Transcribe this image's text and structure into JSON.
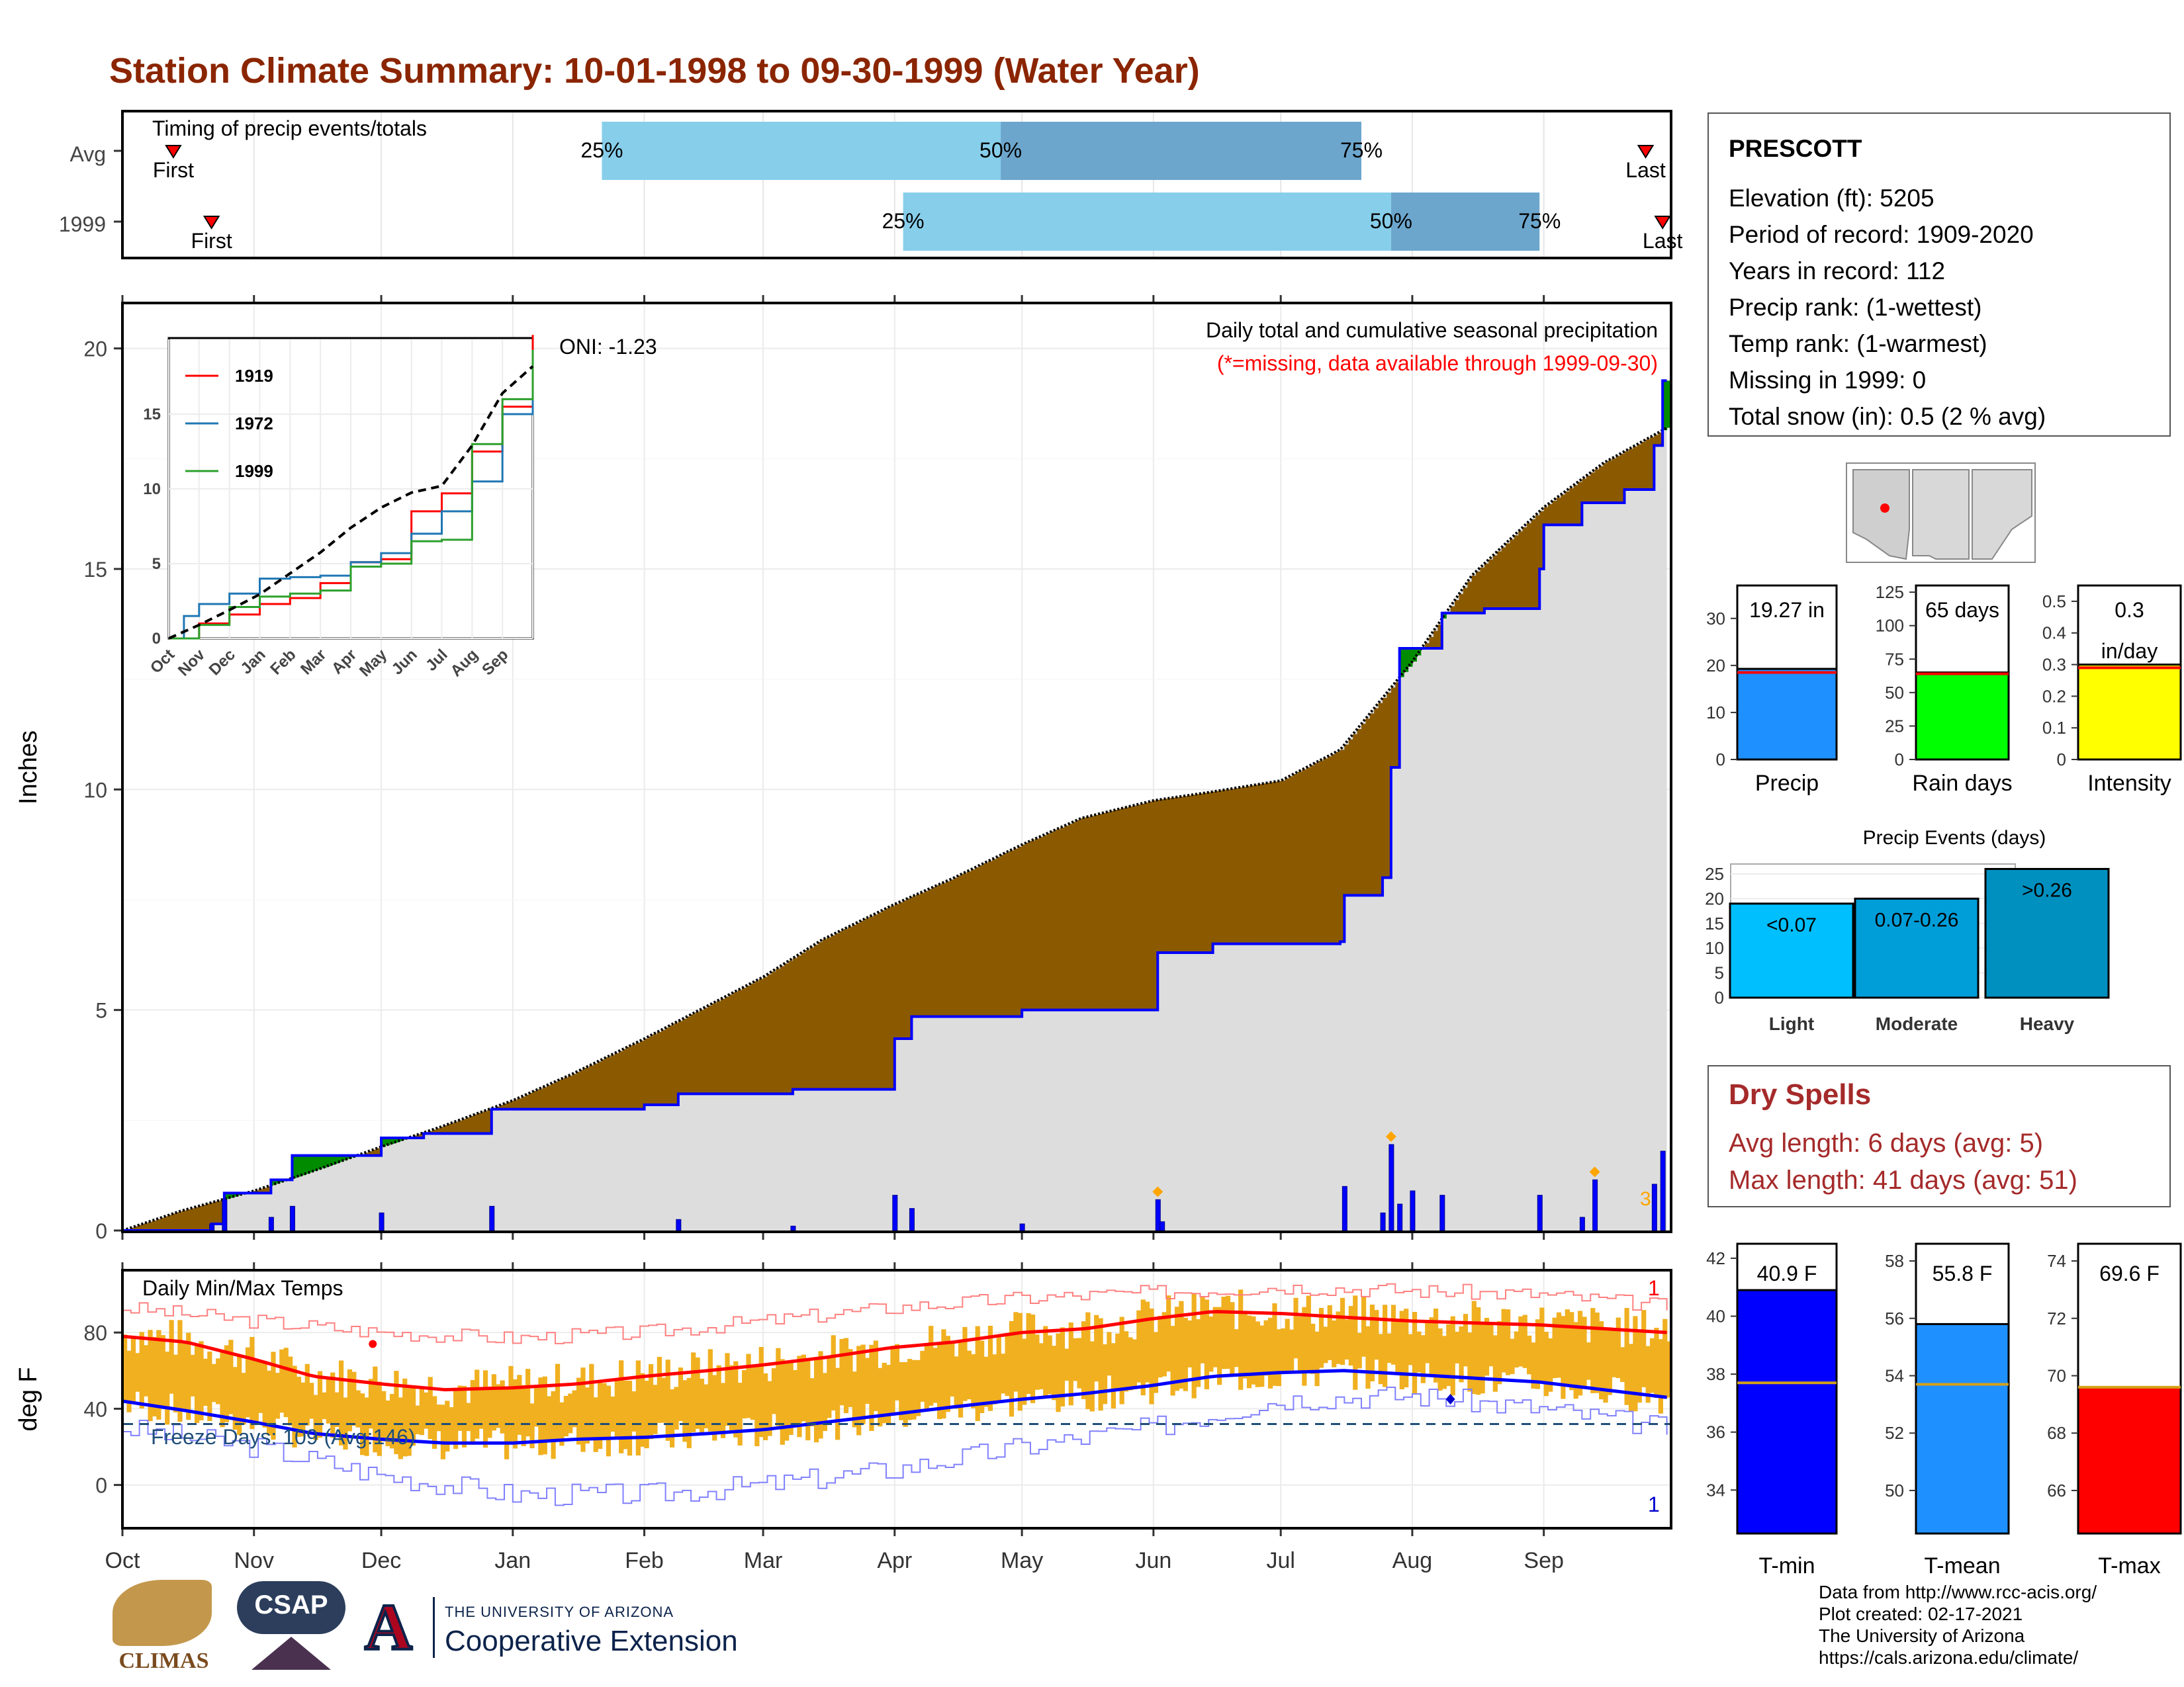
{
  "title": "Station Climate Summary: 10-01-1998 to 09-30-1999 (Water Year)",
  "colors": {
    "title": "#8b2500",
    "light_blue": "#87ceeb",
    "mid_blue": "#6ca6cd",
    "brown_fill": "#8b5a00",
    "green_fill": "#008b00",
    "grey_fill": "#dddddd",
    "blue_line": "#0000ff",
    "tmax_line": "#ff0000",
    "tmin_line": "#0000ff",
    "temp_bar": "#f0b020",
    "freeze_line": "#1f4e79",
    "marker_red": "#ff0000",
    "marker_orange": "#ffa500"
  },
  "timing_panel": {
    "header": "Timing of precip events/totals",
    "rows": [
      {
        "label": "Avg",
        "first": "First",
        "last": "Last",
        "p25": "25%",
        "p50": "50%",
        "p75": "75%"
      },
      {
        "label": "1999",
        "first": "First",
        "last": "Last",
        "p25": "25%",
        "p50": "50%",
        "p75": "75%"
      }
    ]
  },
  "precip_panel": {
    "ylabel": "Inches",
    "title_line1": "Daily total and cumulative seasonal precipitation",
    "title_line2": "(*=missing, data available through 1999-09-30)",
    "oni": "ONI: -1.23",
    "y_ticks": [
      "0",
      "5",
      "10",
      "15",
      "20"
    ],
    "mark_label": "3"
  },
  "inset": {
    "legend": [
      "1919",
      "1972",
      "1999"
    ],
    "y_ticks": [
      "0",
      "5",
      "10",
      "15"
    ],
    "x_ticks": [
      "Oct",
      "Nov",
      "Dec",
      "Jan",
      "Feb",
      "Mar",
      "Apr",
      "May",
      "Jun",
      "Jul",
      "Aug",
      "Sep"
    ]
  },
  "temp_panel": {
    "ylabel": "deg F",
    "header": "Daily Min/Max Temps",
    "freeze": "Freeze Days: 109 (Avg:146)",
    "y_ticks": [
      "0",
      "40",
      "80"
    ],
    "record_hi_count": "1",
    "record_lo_count": "1"
  },
  "months": [
    "Oct",
    "Nov",
    "Dec",
    "Jan",
    "Feb",
    "Mar",
    "Apr",
    "May",
    "Jun",
    "Jul",
    "Aug",
    "Sep"
  ],
  "station": {
    "name": "PRESCOTT",
    "lines": [
      "Elevation (ft): 5205",
      "Period of record: 1909-2020",
      "Years in record: 112",
      "Precip rank:  (1-wettest)",
      "Temp rank:  (1-warmest)",
      "Missing in 1999: 0",
      "Total snow (in): 0.5 (2 % avg)"
    ]
  },
  "dry_spells": {
    "title": "Dry Spells",
    "avg": "Avg length: 6 days (avg: 5)",
    "max": "Max length: 41 days (avg: 51)"
  },
  "footer": {
    "line1": "Data from http://www.rcc-acis.org/",
    "line2": "Plot created: 02-17-2021",
    "line3": "The University of Arizona",
    "line4": "https://cals.arizona.edu/climate/"
  },
  "logos": {
    "climas": "CLIMAS",
    "csap": "CSAP",
    "ua_small": "THE UNIVERSITY OF ARIZONA",
    "ua_big": "Cooperative Extension"
  },
  "chart_data": [
    {
      "type": "bar",
      "name": "timing",
      "categories": [
        "Avg",
        "1999"
      ],
      "series": [
        {
          "row": "Avg",
          "first": "1998-10-13",
          "p25": "1999-01-22",
          "p50": "1999-04-26",
          "p75": "1999-07-20",
          "last": "1999-09-25"
        },
        {
          "row": "1999",
          "first": "1998-10-22",
          "p25": "1999-04-03",
          "p50": "1999-07-27",
          "p75": "1999-08-31",
          "last": "1999-09-29"
        }
      ]
    },
    {
      "type": "area",
      "name": "cumulative_precip",
      "xlabel": "",
      "ylabel": "Inches",
      "ylim": [
        0,
        21
      ],
      "xlim": [
        "1998-10-01",
        "1999-09-30"
      ],
      "average_cumulative": [
        [
          "1998-10-01",
          0
        ],
        [
          "1998-10-15",
          0.45
        ],
        [
          "1998-11-01",
          0.9
        ],
        [
          "1998-11-15",
          1.35
        ],
        [
          "1998-12-01",
          1.9
        ],
        [
          "1998-12-15",
          2.35
        ],
        [
          "1999-01-01",
          2.95
        ],
        [
          "1999-01-15",
          3.55
        ],
        [
          "1999-02-01",
          4.35
        ],
        [
          "1999-02-15",
          5.05
        ],
        [
          "1999-03-01",
          5.75
        ],
        [
          "1999-03-15",
          6.6
        ],
        [
          "1999-04-01",
          7.4
        ],
        [
          "1999-04-15",
          8.0
        ],
        [
          "1999-05-01",
          8.75
        ],
        [
          "1999-05-15",
          9.35
        ],
        [
          "1999-06-01",
          9.75
        ],
        [
          "1999-06-15",
          9.95
        ],
        [
          "1999-07-01",
          10.2
        ],
        [
          "1999-07-15",
          10.9
        ],
        [
          "1999-08-01",
          12.9
        ],
        [
          "1999-08-15",
          14.85
        ],
        [
          "1999-09-01",
          16.4
        ],
        [
          "1999-09-15",
          17.4
        ],
        [
          "1999-09-30",
          18.2
        ]
      ],
      "observed_cumulative": [
        [
          "1998-10-01",
          0
        ],
        [
          "1998-10-20",
          0
        ],
        [
          "1998-10-22",
          0.15
        ],
        [
          "1998-10-25",
          0.85
        ],
        [
          "1998-11-05",
          1.15
        ],
        [
          "1998-11-10",
          1.7
        ],
        [
          "1998-11-28",
          1.7
        ],
        [
          "1998-12-01",
          2.1
        ],
        [
          "1998-12-08",
          2.1
        ],
        [
          "1998-12-11",
          2.2
        ],
        [
          "1998-12-25",
          2.2
        ],
        [
          "1998-12-27",
          2.75
        ],
        [
          "1999-01-18",
          2.75
        ],
        [
          "1999-02-01",
          2.85
        ],
        [
          "1999-02-09",
          3.1
        ],
        [
          "1999-03-08",
          3.2
        ],
        [
          "1999-03-31",
          3.2
        ],
        [
          "1999-04-01",
          4.35
        ],
        [
          "1999-04-05",
          4.85
        ],
        [
          "1999-05-01",
          5.0
        ],
        [
          "1999-05-24",
          5.0
        ],
        [
          "1999-06-02",
          5.6
        ],
        [
          "1999-06-02",
          6.3
        ],
        [
          "1999-06-15",
          6.5
        ],
        [
          "1999-07-15",
          6.55
        ],
        [
          "1999-07-16",
          7.6
        ],
        [
          "1999-07-25",
          8.0
        ],
        [
          "1999-07-27",
          10.5
        ],
        [
          "1999-07-29",
          13.2
        ],
        [
          "1999-08-05",
          13.2
        ],
        [
          "1999-08-08",
          14.0
        ],
        [
          "1999-08-18",
          14.1
        ],
        [
          "1999-08-31",
          15.0
        ],
        [
          "1999-09-01",
          16.0
        ],
        [
          "1999-09-10",
          16.5
        ],
        [
          "1999-09-20",
          16.8
        ],
        [
          "1999-09-27",
          17.8
        ],
        [
          "1999-09-29",
          19.27
        ],
        [
          "1999-09-30",
          19.27
        ]
      ],
      "daily_precip": [
        [
          "1998-10-22",
          0.15
        ],
        [
          "1998-10-25",
          0.7
        ],
        [
          "1998-11-05",
          0.3
        ],
        [
          "1998-11-10",
          0.55
        ],
        [
          "1998-12-01",
          0.4
        ],
        [
          "1998-12-27",
          0.55
        ],
        [
          "1999-02-09",
          0.25
        ],
        [
          "1999-03-08",
          0.1
        ],
        [
          "1999-04-01",
          0.8
        ],
        [
          "1999-04-05",
          0.5
        ],
        [
          "1999-05-01",
          0.15
        ],
        [
          "1999-06-02",
          0.7
        ],
        [
          "1999-06-03",
          0.2
        ],
        [
          "1999-07-16",
          1.0
        ],
        [
          "1999-07-25",
          0.4
        ],
        [
          "1999-07-27",
          1.95
        ],
        [
          "1999-07-29",
          0.6
        ],
        [
          "1999-08-01",
          0.9
        ],
        [
          "1999-08-08",
          0.8
        ],
        [
          "1999-08-31",
          0.8
        ],
        [
          "1999-09-10",
          0.3
        ],
        [
          "1999-09-13",
          1.15
        ],
        [
          "1999-09-27",
          1.05
        ],
        [
          "1999-09-29",
          1.8
        ]
      ]
    },
    {
      "type": "line",
      "name": "inset_cumulative",
      "xlim": [
        0,
        12
      ],
      "ylim": [
        0,
        20
      ],
      "series": [
        {
          "name": "1919",
          "color": "#ff0000",
          "points": [
            [
              0,
              0
            ],
            [
              1,
              1
            ],
            [
              2,
              1.6
            ],
            [
              3,
              2.3
            ],
            [
              4,
              2.7
            ],
            [
              5,
              3.7
            ],
            [
              6,
              5.1
            ],
            [
              7,
              5.3
            ],
            [
              8,
              8.5
            ],
            [
              9,
              9.7
            ],
            [
              10,
              12.5
            ],
            [
              11,
              15.5
            ],
            [
              12,
              20.3
            ]
          ]
        },
        {
          "name": "1972",
          "color": "#1f77b4",
          "points": [
            [
              0,
              0
            ],
            [
              0.5,
              1.5
            ],
            [
              1,
              2.3
            ],
            [
              2,
              3
            ],
            [
              3,
              4
            ],
            [
              4,
              4.1
            ],
            [
              5,
              4.2
            ],
            [
              6,
              5.1
            ],
            [
              7,
              5.7
            ],
            [
              8,
              7
            ],
            [
              9,
              8.5
            ],
            [
              10,
              10.5
            ],
            [
              11,
              15
            ],
            [
              12,
              17.5
            ]
          ]
        },
        {
          "name": "1999",
          "color": "#2ca02c",
          "points": [
            [
              0,
              0
            ],
            [
              1,
              0.9
            ],
            [
              2,
              2.1
            ],
            [
              3,
              2.8
            ],
            [
              4,
              3
            ],
            [
              5,
              3.2
            ],
            [
              6,
              4.8
            ],
            [
              7,
              5
            ],
            [
              8,
              6.5
            ],
            [
              9,
              6.6
            ],
            [
              10,
              13
            ],
            [
              11,
              16
            ],
            [
              12,
              19.3
            ]
          ]
        },
        {
          "name": "avg",
          "color": "#000000",
          "dashed": true,
          "points": [
            [
              0,
              0
            ],
            [
              1,
              0.9
            ],
            [
              2,
              1.9
            ],
            [
              3,
              2.95
            ],
            [
              4,
              4.35
            ],
            [
              5,
              5.75
            ],
            [
              6,
              7.4
            ],
            [
              7,
              8.75
            ],
            [
              8,
              9.75
            ],
            [
              9,
              10.2
            ],
            [
              10,
              12.9
            ],
            [
              11,
              16.4
            ],
            [
              12,
              18.2
            ]
          ]
        }
      ]
    },
    {
      "type": "line",
      "name": "temperature",
      "ylabel": "deg F",
      "ylim": [
        -22,
        112
      ],
      "avg_tmax": [
        [
          0,
          78
        ],
        [
          15,
          75
        ],
        [
          31,
          66
        ],
        [
          45,
          57
        ],
        [
          61,
          53
        ],
        [
          76,
          50
        ],
        [
          92,
          51
        ],
        [
          107,
          53
        ],
        [
          123,
          57
        ],
        [
          138,
          60
        ],
        [
          151,
          63
        ],
        [
          166,
          67
        ],
        [
          181,
          72
        ],
        [
          196,
          75
        ],
        [
          212,
          80
        ],
        [
          227,
          82
        ],
        [
          242,
          87
        ],
        [
          257,
          91
        ],
        [
          273,
          90
        ],
        [
          288,
          88
        ],
        [
          304,
          86
        ],
        [
          319,
          85
        ],
        [
          334,
          84
        ],
        [
          349,
          82
        ],
        [
          364,
          80
        ]
      ],
      "avg_tmin": [
        [
          0,
          44
        ],
        [
          15,
          39
        ],
        [
          31,
          33
        ],
        [
          45,
          27
        ],
        [
          61,
          24
        ],
        [
          76,
          22
        ],
        [
          92,
          22
        ],
        [
          107,
          24
        ],
        [
          123,
          25
        ],
        [
          138,
          27
        ],
        [
          151,
          29
        ],
        [
          166,
          33
        ],
        [
          181,
          37
        ],
        [
          196,
          41
        ],
        [
          212,
          45
        ],
        [
          227,
          48
        ],
        [
          242,
          52
        ],
        [
          257,
          57
        ],
        [
          273,
          59
        ],
        [
          288,
          60
        ],
        [
          304,
          58
        ],
        [
          319,
          56
        ],
        [
          334,
          54
        ],
        [
          349,
          50
        ],
        [
          364,
          46
        ]
      ],
      "rec_hi_series": [
        [
          0,
          93
        ],
        [
          31,
          86
        ],
        [
          61,
          80
        ],
        [
          92,
          77
        ],
        [
          123,
          80
        ],
        [
          151,
          86
        ],
        [
          181,
          93
        ],
        [
          212,
          98
        ],
        [
          242,
          101
        ],
        [
          273,
          104
        ],
        [
          304,
          102
        ],
        [
          334,
          100
        ],
        [
          364,
          94
        ]
      ],
      "rec_lo_series": [
        [
          0,
          30
        ],
        [
          31,
          20
        ],
        [
          61,
          5
        ],
        [
          92,
          -5
        ],
        [
          123,
          -5
        ],
        [
          151,
          0
        ],
        [
          181,
          8
        ],
        [
          212,
          20
        ],
        [
          242,
          30
        ],
        [
          273,
          45
        ],
        [
          304,
          47
        ],
        [
          334,
          40
        ],
        [
          364,
          30
        ]
      ],
      "freeze_line": 32
    },
    {
      "type": "bar",
      "name": "season_totals",
      "series": [
        {
          "label": "Precip",
          "value": 19.27,
          "avg": 18.5,
          "ylim": [
            0,
            37
          ],
          "ticks": [
            0,
            10,
            20,
            30
          ],
          "text1": "19.27 in",
          "text2": "",
          "color": "#1e90ff"
        },
        {
          "label": "Rain days",
          "value": 65,
          "avg": 64,
          "ylim": [
            0,
            130
          ],
          "ticks": [
            0,
            25,
            50,
            75,
            100,
            125
          ],
          "text1": "65 days",
          "text2": "",
          "color": "#00ff00"
        },
        {
          "label": "Intensity",
          "value": 0.3,
          "avg": 0.29,
          "ylim": [
            0,
            0.55
          ],
          "ticks": [
            0.0,
            0.1,
            0.2,
            0.3,
            0.4,
            0.5
          ],
          "text1": "0.3",
          "text2": "in/day",
          "color": "#ffff00"
        }
      ]
    },
    {
      "type": "bar",
      "name": "precip_events",
      "title": "Precip Events (days)",
      "categories": [
        "Light",
        "Moderate",
        "Heavy"
      ],
      "values": [
        19,
        20,
        26
      ],
      "labels": [
        "<0.07",
        "0.07-0.26",
        ">0.26"
      ],
      "colors": [
        "#00bfff",
        "#009ed9",
        "#0090c0"
      ],
      "ylim": [
        0,
        27
      ],
      "ticks": [
        0,
        5,
        10,
        15,
        20,
        25
      ]
    },
    {
      "type": "bar",
      "name": "temperature_summary",
      "series": [
        {
          "label": "T-min",
          "value": 40.9,
          "avg": 37.7,
          "ylim": [
            32.5,
            42.5
          ],
          "ticks": [
            34,
            36,
            38,
            40,
            42
          ],
          "text": "40.9 F",
          "color": "#0000ff"
        },
        {
          "label": "T-mean",
          "value": 55.8,
          "avg": 53.7,
          "ylim": [
            48.5,
            58.6
          ],
          "ticks": [
            50,
            52,
            54,
            56,
            58
          ],
          "text": "55.8 F",
          "color": "#1e90ff"
        },
        {
          "label": "T-max",
          "value": 69.6,
          "avg": 69.6,
          "ylim": [
            64.5,
            74.6
          ],
          "ticks": [
            66,
            68,
            70,
            72,
            74
          ],
          "text": "69.6 F",
          "color": "#ff0000"
        }
      ]
    }
  ]
}
